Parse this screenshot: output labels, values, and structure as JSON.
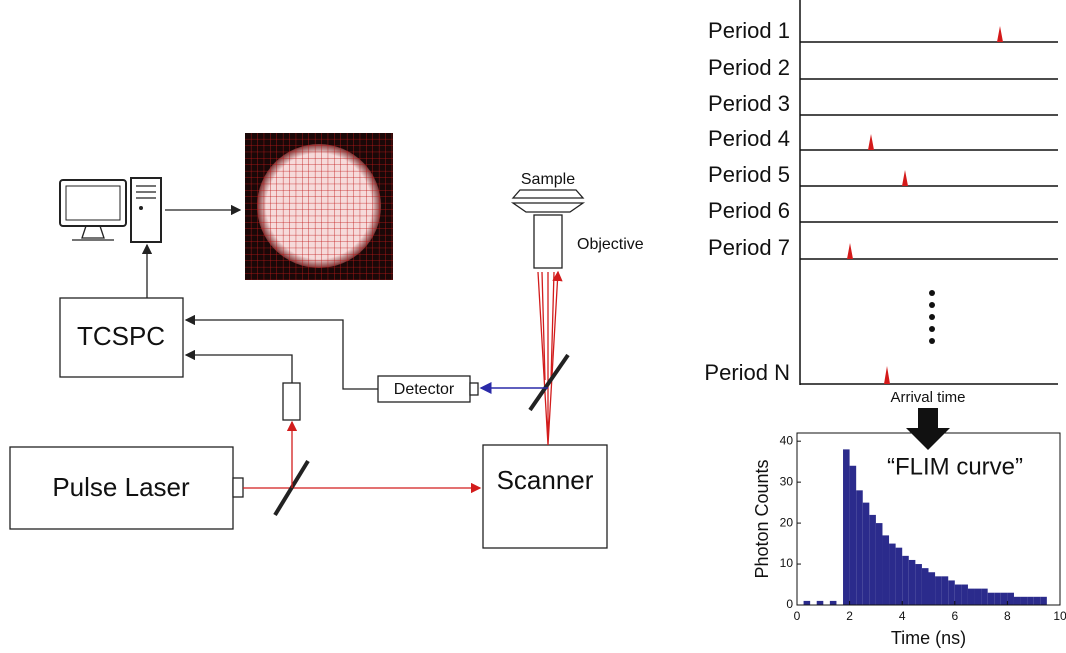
{
  "labels": {
    "sample": "Sample",
    "objective": "Objective",
    "tcspc": "TCSPC",
    "detector": "Detector",
    "pulse_laser": "Pulse Laser",
    "scanner": "Scanner",
    "arrival_time": "Arrival time"
  },
  "periods": [
    "Period 1",
    "Period 2",
    "Period 3",
    "Period 4",
    "Period 5",
    "Period 6",
    "Period 7",
    "Period N"
  ],
  "chart_data": {
    "type": "histogram",
    "annotation": "“FLIM curve”",
    "x_label": "Time (ns)",
    "y_label": "Photon Counts",
    "color": "#2b2b8c",
    "bins": [
      0,
      0.25,
      0.5,
      0.75,
      1,
      1.25,
      1.5,
      1.75,
      2,
      2.25,
      2.5,
      2.75,
      3,
      3.25,
      3.5,
      3.75,
      4,
      4.25,
      4.5,
      4.75,
      5,
      5.25,
      5.5,
      5.75,
      6,
      6.25,
      6.5,
      6.75,
      7,
      7.25,
      7.5,
      7.75,
      8,
      8.25,
      8.5,
      8.75,
      9,
      9.25,
      9.5,
      9.75,
      10
    ],
    "values": [
      0,
      1,
      0,
      1,
      0,
      1,
      0,
      38,
      34,
      28,
      25,
      22,
      20,
      17,
      15,
      14,
      12,
      11,
      10,
      9,
      8,
      7,
      7,
      6,
      5,
      5,
      4,
      4,
      4,
      3,
      3,
      3,
      3,
      2,
      2,
      2,
      2,
      2,
      0,
      0
    ],
    "xlim": [
      0,
      10
    ],
    "ylim": [
      0,
      42
    ],
    "xticks": [
      0,
      2,
      4,
      6,
      8,
      10
    ],
    "yticks": [
      0,
      10,
      20,
      30,
      40
    ]
  }
}
